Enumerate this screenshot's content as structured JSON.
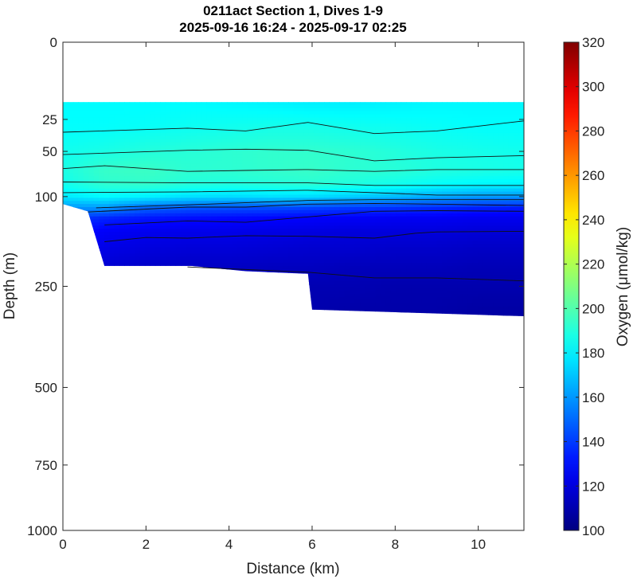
{
  "chart_data": {
    "type": "heatmap",
    "title": "0211act Section 1, Dives 1-9",
    "subtitle": "2025-09-16 16:24 - 2025-09-17 02:25",
    "xlabel": "Distance (km)",
    "ylabel": "Depth (m)",
    "xlim": [
      0,
      11.1
    ],
    "ylim": [
      0,
      1000
    ],
    "y_scale": "sqrt",
    "x_ticks": [
      0,
      2,
      4,
      6,
      8,
      10
    ],
    "y_ticks": [
      0,
      25,
      50,
      100,
      250,
      500,
      750,
      1000
    ],
    "colorbar": {
      "label": "Oxygen (μmol/kg)",
      "range": [
        100,
        320
      ],
      "ticks": [
        100,
        120,
        140,
        160,
        180,
        200,
        220,
        240,
        260,
        280,
        300,
        320
      ],
      "colormap": "jet"
    },
    "data_top_depth": 15,
    "bottom_depth_profile": {
      "x": [
        0,
        0.6,
        1.0,
        3.1,
        4.4,
        5.9,
        6.0,
        11.1
      ],
      "depth": [
        110,
        120,
        210,
        210,
        220,
        225,
        300,
        315
      ]
    },
    "oxygen_field": {
      "x": [
        0,
        1,
        2,
        3,
        4,
        5,
        6,
        7,
        8,
        9,
        10,
        11.1
      ],
      "depth": [
        15,
        30,
        50,
        70,
        85,
        100,
        115,
        130,
        150,
        180,
        210,
        250,
        300
      ],
      "values": [
        [
          182,
          182,
          182,
          182,
          181,
          180,
          179,
          179,
          180,
          181,
          181,
          181
        ],
        [
          183,
          183,
          184,
          185,
          186,
          187,
          187,
          186,
          185,
          184,
          183,
          183
        ],
        [
          186,
          188,
          190,
          191,
          192,
          193,
          193,
          192,
          190,
          188,
          187,
          186
        ],
        [
          188,
          194,
          195,
          192,
          192,
          193,
          194,
          192,
          191,
          189,
          188,
          187
        ],
        [
          186,
          192,
          193,
          190,
          189,
          190,
          191,
          189,
          186,
          183,
          181,
          180
        ],
        [
          178,
          182,
          180,
          176,
          175,
          176,
          175,
          172,
          168,
          164,
          161,
          160
        ],
        [
          160,
          160,
          150,
          146,
          145,
          144,
          142,
          140,
          138,
          136,
          134,
          133
        ],
        [
          140,
          135,
          132,
          130,
          129,
          128,
          127,
          126,
          125,
          125,
          124,
          124
        ],
        [
          132,
          126,
          124,
          123,
          123,
          122,
          121,
          120,
          120,
          120,
          119,
          119
        ],
        [
          126,
          122,
          120,
          119,
          119,
          118,
          117,
          117,
          116,
          116,
          115,
          115
        ],
        [
          121,
          118,
          116,
          115,
          115,
          114,
          114,
          113,
          113,
          113,
          112,
          112
        ],
        [
          117,
          115,
          113,
          112,
          112,
          111,
          111,
          111,
          110,
          110,
          110,
          110
        ],
        [
          115,
          113,
          112,
          111,
          111,
          110,
          110,
          109,
          109,
          109,
          108,
          108
        ]
      ]
    },
    "density_contours": [
      {
        "x": [
          0,
          3.0,
          4.4,
          5.9,
          7.5,
          9.0,
          11.1
        ],
        "depth": [
          34,
          31,
          33,
          27,
          35,
          33,
          26
        ]
      },
      {
        "x": [
          0,
          3.0,
          4.4,
          5.9,
          7.5,
          9.0,
          11.1
        ],
        "depth": [
          53,
          49,
          48,
          49,
          59,
          56,
          54
        ]
      },
      {
        "x": [
          0,
          1.0,
          3.0,
          4.4,
          5.9,
          7.5,
          9.0,
          11.1
        ],
        "depth": [
          67,
          64,
          70,
          69,
          68,
          70,
          68,
          68
        ]
      },
      {
        "x": [
          0,
          3.0,
          5.9,
          7.5,
          9.0,
          11.1
        ],
        "depth": [
          82,
          83,
          83,
          86,
          86,
          86
        ]
      },
      {
        "x": [
          0,
          3.0,
          5.9,
          7.5,
          9.0,
          11.1
        ],
        "depth": [
          95,
          94,
          92,
          95,
          98,
          98
        ]
      },
      {
        "x": [
          0.8,
          3.0,
          5.9,
          7.5,
          9.0,
          11.1
        ],
        "depth": [
          115,
          111,
          105,
          104,
          104,
          104
        ]
      },
      {
        "x": [
          0.6,
          3.0,
          4.4,
          5.9,
          7.5,
          9.0,
          11.1
        ],
        "depth": [
          121,
          114,
          114,
          110,
          109,
          110,
          112
        ]
      },
      {
        "x": [
          1.0,
          3.0,
          4.4,
          5.9,
          7.5,
          9.0,
          11.1
        ],
        "depth": [
          140,
          134,
          136,
          128,
          120,
          119,
          120
        ]
      },
      {
        "x": [
          1.0,
          2.0,
          3.0,
          4.4,
          5.9,
          7.5,
          8.5,
          9.0,
          11.1
        ],
        "depth": [
          167,
          160,
          161,
          157,
          158,
          161,
          153,
          151,
          150
        ]
      },
      {
        "x": [
          3.0,
          5.9,
          7.5,
          9.0,
          11.1
        ],
        "depth": [
          212,
          222,
          233,
          233,
          239
        ]
      }
    ]
  }
}
